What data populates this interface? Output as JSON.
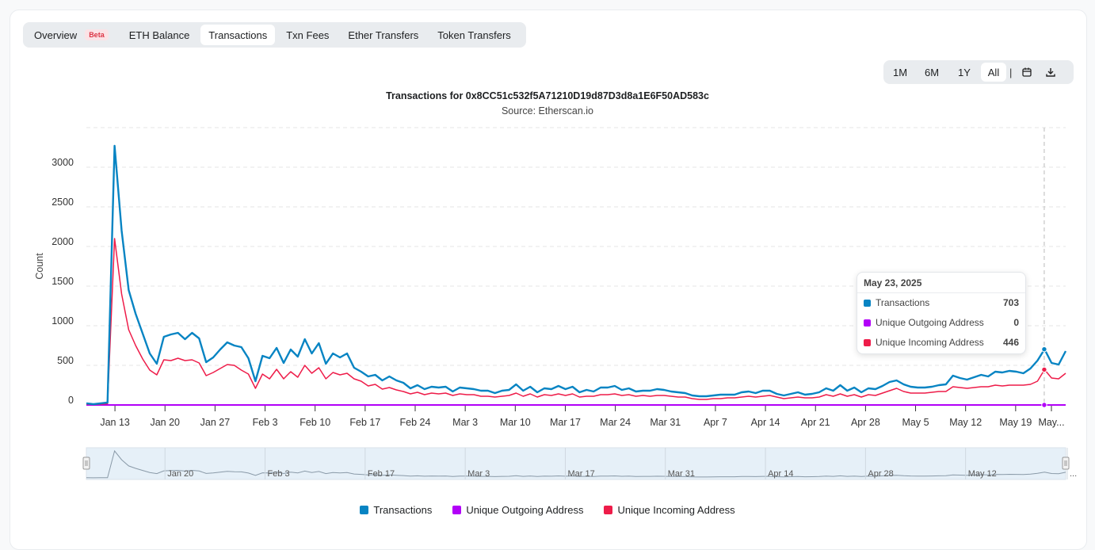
{
  "tabs": [
    {
      "label": "Overview",
      "badge": "Beta"
    },
    {
      "label": "ETH Balance"
    },
    {
      "label": "Transactions"
    },
    {
      "label": "Txn Fees"
    },
    {
      "label": "Ether Transfers"
    },
    {
      "label": "Token Transfers"
    }
  ],
  "ranges": {
    "m1": "1M",
    "m6": "6M",
    "y1": "1Y",
    "all": "All",
    "separator": "|"
  },
  "icons": {
    "calendar": "calendar-icon",
    "download": "download-icon"
  },
  "colors": {
    "transactions": "#0784c3",
    "outgoing": "#b200f8",
    "incoming": "#ee1c49"
  },
  "tooltip": {
    "date": "May 23, 2025",
    "rows": [
      {
        "label": "Transactions",
        "value": "703"
      },
      {
        "label": "Unique Outgoing Address",
        "value": "0"
      },
      {
        "label": "Unique Incoming Address",
        "value": "446"
      }
    ]
  },
  "legend": [
    "Transactions",
    "Unique Outgoing Address",
    "Unique Incoming Address"
  ],
  "chart_data": {
    "type": "line",
    "title": "Transactions for 0x8CC51c532f5A71210D19d87D3d8a1E6F50AD583c",
    "subtitle": "Source: Etherscan.io",
    "ylabel": "Count",
    "xlabel": "",
    "ylim": [
      0,
      3500
    ],
    "yticks": [
      0,
      500,
      1000,
      1500,
      2000,
      2500,
      3000
    ],
    "x_start": "2025-01-09",
    "x_end": "2025-05-26",
    "x_tick_labels": [
      "Jan 13",
      "Jan 20",
      "Jan 27",
      "Feb 3",
      "Feb 10",
      "Feb 17",
      "Feb 24",
      "Mar 3",
      "Mar 10",
      "Mar 17",
      "Mar 24",
      "Mar 31",
      "Apr 7",
      "Apr 14",
      "Apr 21",
      "Apr 28",
      "May 5",
      "May 12",
      "May 19",
      "May..."
    ],
    "navigator_labels": [
      "Jan 20",
      "Feb 3",
      "Feb 17",
      "Mar 3",
      "Mar 17",
      "Mar 31",
      "Apr 14",
      "Apr 28",
      "May 12",
      "..."
    ],
    "grid": true,
    "legend_position": "bottom",
    "series": [
      {
        "name": "Transactions",
        "values": [
          20,
          10,
          20,
          30,
          3270,
          2200,
          1450,
          1150,
          900,
          650,
          520,
          860,
          890,
          910,
          830,
          910,
          840,
          540,
          600,
          700,
          790,
          750,
          730,
          590,
          300,
          620,
          590,
          720,
          530,
          700,
          610,
          830,
          650,
          780,
          520,
          650,
          600,
          650,
          470,
          420,
          360,
          380,
          310,
          360,
          310,
          280,
          210,
          250,
          200,
          230,
          220,
          230,
          170,
          220,
          210,
          200,
          180,
          180,
          150,
          180,
          190,
          260,
          180,
          230,
          160,
          210,
          200,
          240,
          200,
          230,
          160,
          190,
          170,
          220,
          220,
          240,
          190,
          210,
          170,
          180,
          180,
          200,
          190,
          170,
          160,
          150,
          120,
          110,
          110,
          120,
          130,
          130,
          130,
          160,
          170,
          150,
          180,
          180,
          140,
          120,
          140,
          160,
          130,
          140,
          160,
          210,
          180,
          250,
          180,
          220,
          160,
          210,
          200,
          240,
          290,
          310,
          260,
          230,
          220,
          220,
          230,
          250,
          260,
          370,
          340,
          320,
          350,
          380,
          360,
          420,
          410,
          430,
          420,
          400,
          460,
          560,
          703,
          530,
          510,
          680
        ]
      },
      {
        "name": "Unique Outgoing Address",
        "values": [
          0,
          0,
          0,
          0,
          0,
          0,
          0,
          0,
          0,
          0,
          0,
          0,
          0,
          0,
          0,
          0,
          0,
          0,
          0,
          0,
          0,
          0,
          0,
          0,
          0,
          0,
          0,
          0,
          0,
          0,
          0,
          0,
          0,
          0,
          0,
          0,
          0,
          0,
          0,
          0,
          0,
          0,
          0,
          0,
          0,
          0,
          0,
          0,
          0,
          0,
          0,
          0,
          0,
          0,
          0,
          0,
          0,
          0,
          0,
          0,
          0,
          0,
          0,
          0,
          0,
          0,
          0,
          0,
          0,
          0,
          0,
          0,
          0,
          0,
          0,
          0,
          0,
          0,
          0,
          0,
          0,
          0,
          0,
          0,
          0,
          0,
          0,
          0,
          0,
          0,
          0,
          0,
          0,
          0,
          0,
          0,
          0,
          0,
          0,
          0,
          0,
          0,
          0,
          0,
          0,
          0,
          0,
          0,
          0,
          0,
          0,
          0,
          0,
          0,
          0,
          0,
          0,
          0,
          0,
          0,
          0,
          0,
          0,
          0,
          0,
          0,
          0,
          0,
          0,
          0,
          0,
          0,
          0,
          0,
          0,
          0,
          0,
          0,
          0,
          0
        ]
      },
      {
        "name": "Unique Incoming Address",
        "values": [
          10,
          5,
          10,
          15,
          2100,
          1400,
          950,
          750,
          580,
          440,
          380,
          570,
          560,
          590,
          560,
          570,
          530,
          370,
          410,
          460,
          510,
          500,
          440,
          390,
          210,
          390,
          330,
          450,
          330,
          420,
          350,
          500,
          400,
          470,
          330,
          410,
          380,
          400,
          330,
          300,
          240,
          260,
          200,
          220,
          190,
          170,
          140,
          160,
          130,
          150,
          140,
          150,
          120,
          140,
          130,
          130,
          110,
          110,
          100,
          110,
          120,
          150,
          110,
          140,
          100,
          130,
          120,
          140,
          120,
          140,
          100,
          110,
          110,
          130,
          130,
          140,
          120,
          130,
          110,
          120,
          110,
          120,
          120,
          110,
          100,
          100,
          80,
          70,
          70,
          80,
          80,
          90,
          90,
          100,
          110,
          100,
          110,
          120,
          100,
          80,
          90,
          100,
          90,
          90,
          100,
          130,
          110,
          140,
          110,
          130,
          100,
          130,
          120,
          150,
          180,
          210,
          170,
          150,
          150,
          150,
          160,
          170,
          170,
          230,
          220,
          210,
          220,
          230,
          230,
          250,
          240,
          250,
          250,
          250,
          260,
          300,
          446,
          340,
          330,
          400
        ]
      }
    ]
  }
}
